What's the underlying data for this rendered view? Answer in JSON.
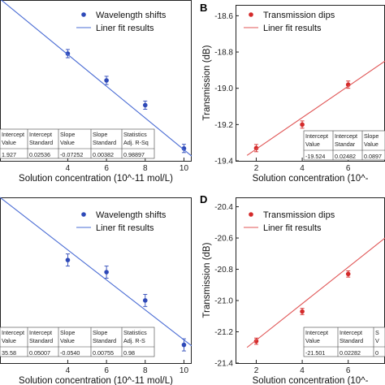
{
  "chart_data": [
    {
      "panel": "",
      "type": "scatter",
      "xlabel": "Solution concentration (10^-11 mol/L)",
      "ylabel": "",
      "xticks": [
        4,
        6,
        8,
        10
      ],
      "yticks": [],
      "xlim": [
        0.5,
        10.4
      ],
      "ylim": [
        -0.95,
        -0.17
      ],
      "series": [
        {
          "name": "Wavelength shifts",
          "color": "#2e49b8",
          "kind": "points",
          "x": [
            4,
            6,
            8,
            10
          ],
          "y": [
            -0.43,
            -0.56,
            -0.68,
            -0.89
          ],
          "err": [
            0.02,
            0.02,
            0.02,
            0.02
          ]
        },
        {
          "name": "Liner fit results",
          "color": "#4a6cd4",
          "kind": "line",
          "x": [
            0.5,
            10.4
          ],
          "y": [
            -0.165,
            -0.927
          ]
        }
      ],
      "legend": "top-right",
      "table": {
        "rows": [
          [
            "Intercept",
            "Intercept",
            "Slope",
            "Slope",
            "Statistics"
          ],
          [
            "Value",
            "Standard",
            "Value",
            "Standard",
            "Adj. R-Sq"
          ],
          [
            "1.927",
            "0.02536",
            "-0.07252",
            "0.00382",
            "0.98897"
          ]
        ]
      }
    },
    {
      "panel": "B",
      "type": "scatter",
      "xlabel": "Solution concentration (10^-",
      "ylabel": "Transmission (dB)",
      "xticks": [
        2,
        4,
        6
      ],
      "yticks": [
        -18.6,
        -18.8,
        -19.0,
        -19.2,
        -19.4
      ],
      "ylim": [
        -19.4,
        -18.54
      ],
      "xlim": [
        1.1,
        7.6
      ],
      "series": [
        {
          "name": "Transmission dips",
          "color": "#d42a2a",
          "kind": "points",
          "x": [
            2,
            4,
            6
          ],
          "y": [
            -19.33,
            -19.2,
            -18.98
          ],
          "err": [
            0.02,
            0.02,
            0.02
          ]
        },
        {
          "name": "Liner fit results",
          "color": "#e05555",
          "kind": "line",
          "x": [
            1.6,
            7.6
          ],
          "y": [
            -19.37,
            -18.85
          ]
        }
      ],
      "legend": "top-left",
      "table": {
        "rows": [
          [
            "Intercept",
            "Intercept",
            "Slope"
          ],
          [
            "Value",
            "Standar",
            "Value"
          ],
          [
            "-19.524",
            "0.02482",
            "0.0897"
          ]
        ]
      }
    },
    {
      "panel": "",
      "type": "scatter",
      "xlabel": "Solution concentration (10^-11 mol/L)",
      "ylabel": "",
      "xticks": [
        4,
        6,
        8,
        10
      ],
      "yticks": [],
      "xlim": [
        0.5,
        10.4
      ],
      "ylim": [
        -1.0,
        -0.18
      ],
      "series": [
        {
          "name": "Wavelength shifts",
          "color": "#2e49b8",
          "kind": "points",
          "x": [
            4,
            6,
            8,
            10
          ],
          "y": [
            -0.49,
            -0.55,
            -0.69,
            -0.91
          ],
          "err": [
            0.03,
            0.03,
            0.03,
            0.03
          ]
        },
        {
          "name": "Liner fit results",
          "color": "#4a6cd4",
          "kind": "line",
          "x": [
            0.5,
            10.4
          ],
          "y": [
            -0.18,
            -0.915
          ]
        }
      ],
      "legend": "top-right",
      "table": {
        "rows": [
          [
            "Intercept",
            "Intercept",
            "Slope",
            "Slope",
            "Statistics"
          ],
          [
            "Value",
            "Standard",
            "Value",
            "Standard",
            "Adj. R-S"
          ],
          [
            "35.58",
            "0.05007",
            "-0.0540",
            "0.00755",
            "0.98"
          ]
        ]
      }
    },
    {
      "panel": "D",
      "type": "scatter",
      "xlabel": "Solution concentration (10^-",
      "ylabel": "Transmission (dB)",
      "xticks": [
        2,
        4,
        6
      ],
      "yticks": [
        -20.4,
        -20.6,
        -20.8,
        -21.0,
        -21.2,
        -21.4
      ],
      "ylim": [
        -21.4,
        -20.34
      ],
      "xlim": [
        1.1,
        7.6
      ],
      "series": [
        {
          "name": "Transmission dips",
          "color": "#d42a2a",
          "kind": "points",
          "x": [
            2,
            4,
            6
          ],
          "y": [
            -21.26,
            -21.07,
            -20.83
          ],
          "err": [
            0.02,
            0.02,
            0.02
          ]
        },
        {
          "name": "Liner fit results",
          "color": "#e05555",
          "kind": "line",
          "x": [
            1.6,
            7.6
          ],
          "y": [
            -21.3,
            -20.6
          ]
        }
      ],
      "legend": "top-left",
      "table": {
        "rows": [
          [
            "Intercept",
            "Intercept",
            "S"
          ],
          [
            "Value",
            "Standard",
            "V"
          ],
          [
            "-21.501",
            "0.02282",
            "0"
          ]
        ]
      }
    }
  ]
}
